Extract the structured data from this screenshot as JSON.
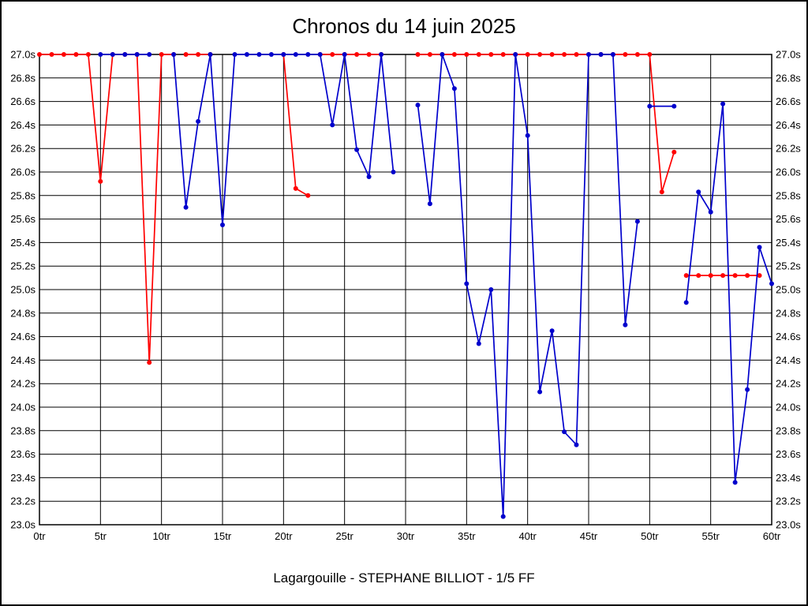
{
  "chart_data": {
    "type": "line",
    "title": "Chronos du 14 juin 2025",
    "caption": "Lagargouille - STEPHANE BILLIOT - 1/5 FF",
    "xlabel": "",
    "ylabel": "",
    "x_axis_unit": "tr",
    "y_axis_unit": "s",
    "xlim": [
      0,
      60
    ],
    "ylim": [
      23.0,
      27.0
    ],
    "grid": true,
    "legend": "none",
    "x_ticks": [
      "0tr",
      "5tr",
      "10tr",
      "15tr",
      "20tr",
      "25tr",
      "30tr",
      "35tr",
      "40tr",
      "45tr",
      "50tr",
      "55tr",
      "60tr"
    ],
    "y_ticks": [
      "27.0s",
      "26.8s",
      "26.6s",
      "26.4s",
      "26.2s",
      "26.0s",
      "25.8s",
      "25.6s",
      "25.4s",
      "25.2s",
      "25.0s",
      "24.8s",
      "24.6s",
      "24.4s",
      "24.2s",
      "24.0s",
      "23.8s",
      "23.6s",
      "23.4s",
      "23.2s",
      "23.0s"
    ],
    "colors": {
      "grid": "#000000",
      "axis": "#000000",
      "background": "#ffffff",
      "series_red": "#ff0000",
      "series_blue": "#0000cc"
    },
    "series": [
      {
        "name": "red",
        "color": "#ff0000",
        "markers": true,
        "segments": [
          [
            [
              0,
              27
            ],
            [
              1,
              27
            ],
            [
              2,
              27
            ],
            [
              3,
              27
            ],
            [
              4,
              27
            ],
            [
              5,
              25.92
            ],
            [
              6,
              27
            ],
            [
              7,
              27
            ],
            [
              8,
              27
            ],
            [
              9,
              24.38
            ],
            [
              10,
              27
            ],
            [
              11,
              27
            ]
          ],
          [
            [
              12,
              27
            ],
            [
              13,
              27
            ],
            [
              14,
              27
            ]
          ],
          [
            [
              20,
              27
            ],
            [
              21,
              25.86
            ],
            [
              22,
              25.8
            ]
          ],
          [
            [
              23,
              27
            ],
            [
              24,
              27
            ],
            [
              25,
              27
            ],
            [
              26,
              27
            ],
            [
              27,
              27
            ],
            [
              28,
              27
            ]
          ],
          [
            [
              31,
              27
            ],
            [
              32,
              27
            ],
            [
              33,
              27
            ],
            [
              34,
              27
            ],
            [
              35,
              27
            ],
            [
              36,
              27
            ],
            [
              37,
              27
            ],
            [
              38,
              27
            ],
            [
              39,
              27
            ],
            [
              40,
              27
            ],
            [
              41,
              27
            ],
            [
              42,
              27
            ],
            [
              43,
              27
            ],
            [
              44,
              27
            ],
            [
              45,
              27
            ],
            [
              46,
              27
            ],
            [
              47,
              27
            ],
            [
              48,
              27
            ],
            [
              49,
              27
            ],
            [
              50,
              27
            ],
            [
              51,
              25.83
            ],
            [
              52,
              26.17
            ]
          ],
          [
            [
              53,
              25.12
            ],
            [
              54,
              25.12
            ],
            [
              55,
              25.12
            ],
            [
              56,
              25.12
            ],
            [
              57,
              25.12
            ],
            [
              58,
              25.12
            ],
            [
              59,
              25.12
            ]
          ]
        ]
      },
      {
        "name": "blue",
        "color": "#0000cc",
        "markers": true,
        "segments": [
          [
            [
              5,
              27
            ],
            [
              6,
              27
            ],
            [
              7,
              27
            ],
            [
              8,
              27
            ],
            [
              9,
              27
            ]
          ],
          [
            [
              11,
              27
            ],
            [
              12,
              25.7
            ],
            [
              13,
              26.43
            ],
            [
              14,
              27
            ],
            [
              15,
              25.55
            ],
            [
              16,
              27
            ],
            [
              17,
              27
            ],
            [
              18,
              27
            ],
            [
              19,
              27
            ],
            [
              20,
              27
            ],
            [
              21,
              27
            ],
            [
              22,
              27
            ],
            [
              23,
              27
            ],
            [
              24,
              26.4
            ],
            [
              25,
              27
            ],
            [
              26,
              26.19
            ],
            [
              27,
              25.96
            ],
            [
              28,
              27
            ],
            [
              29,
              26.0
            ]
          ],
          [
            [
              31,
              26.57
            ],
            [
              32,
              25.73
            ],
            [
              33,
              27
            ],
            [
              34,
              26.71
            ],
            [
              35,
              25.05
            ],
            [
              36,
              24.54
            ],
            [
              37,
              25.0
            ],
            [
              38,
              23.07
            ],
            [
              39,
              27
            ],
            [
              40,
              26.31
            ],
            [
              41,
              24.13
            ],
            [
              42,
              24.65
            ],
            [
              43,
              23.79
            ],
            [
              44,
              23.68
            ],
            [
              45,
              27
            ],
            [
              46,
              27
            ],
            [
              47,
              27
            ],
            [
              48,
              24.7
            ],
            [
              49,
              25.58
            ]
          ],
          [
            [
              50,
              26.56
            ],
            [
              52,
              26.56
            ]
          ],
          [
            [
              53,
              24.89
            ],
            [
              54,
              25.83
            ],
            [
              55,
              25.66
            ],
            [
              56,
              26.58
            ],
            [
              57,
              23.36
            ],
            [
              58,
              24.15
            ],
            [
              59,
              25.36
            ],
            [
              60,
              25.05
            ]
          ]
        ]
      }
    ]
  }
}
